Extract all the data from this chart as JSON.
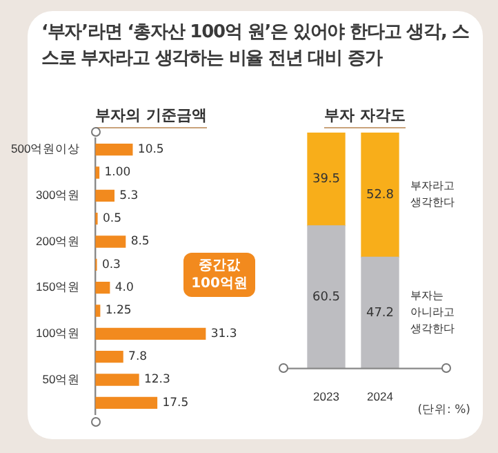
{
  "chart_data": [
    {
      "type": "bar",
      "orientation": "horizontal",
      "title": "‘부자’라면 ‘총자산 100억 원’은 있어야 한다고 생각, 스스로 부자라고 생각하는 비율 전년 대비 증가",
      "subtitle": "부자의 기준금액",
      "categories": [
        "500억원이상",
        null,
        "300억원",
        null,
        "200억원",
        null,
        "150억원",
        null,
        "100억원",
        null,
        "50억원",
        null
      ],
      "values": [
        10.5,
        1.0,
        5.3,
        0.5,
        8.5,
        0.3,
        4.0,
        1.25,
        31.3,
        7.8,
        12.3,
        17.5
      ],
      "value_labels": [
        "10.5",
        "1.00",
        "5.3",
        "0.5",
        "8.5",
        "0.3",
        "4.0",
        "1.25",
        "31.3",
        "7.8",
        "12.3",
        "17.5"
      ],
      "color": "#f28a1e",
      "annotations": [
        "중간값 100억원"
      ],
      "grid": false,
      "legend": false
    },
    {
      "type": "bar",
      "stacked": true,
      "title": "부자 자각도",
      "categories": [
        "2023",
        "2024"
      ],
      "ylim": [
        0,
        100
      ],
      "series": [
        {
          "name": "부자는 아니라고 생각한다",
          "color": "#bdbdc1",
          "values": [
            60.5,
            47.2
          ]
        },
        {
          "name": "부자라고 생각한다",
          "color": "#f8ae1a",
          "values": [
            39.5,
            52.8
          ]
        }
      ],
      "data_labels": true,
      "tick_labels": "x",
      "grid": false,
      "legend": false,
      "annotations": [
        "(단위: %)"
      ]
    }
  ]
}
